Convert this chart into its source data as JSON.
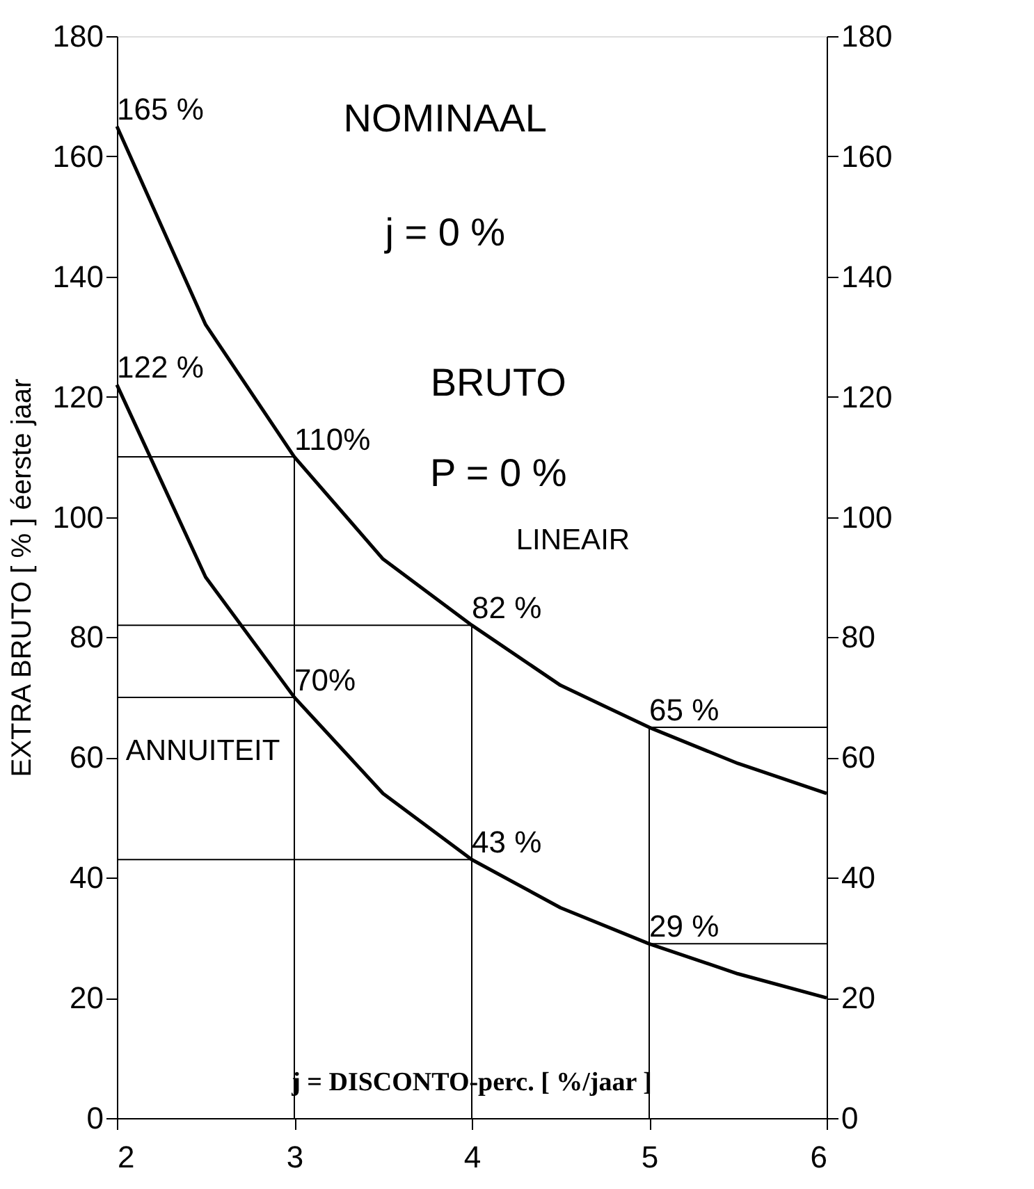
{
  "chart_data": {
    "type": "line",
    "x": [
      2,
      2.5,
      3,
      3.5,
      4,
      4.5,
      5,
      5.5,
      6
    ],
    "series": [
      {
        "name": "LINEAIR",
        "color": "#000000",
        "values": [
          165,
          132,
          110,
          93,
          82,
          72,
          65,
          59,
          54
        ]
      },
      {
        "name": "ANNUITEIT",
        "color": "#000000",
        "values": [
          122,
          90,
          70,
          54,
          43,
          35,
          29,
          24,
          20
        ]
      }
    ],
    "xlabel": "j = DISCONTO-perc. [ %/jaar ]",
    "ylabel": "EXTRA BRUTO [ % ]    éerste jaar",
    "xlim": [
      2,
      6
    ],
    "xticks": [
      2,
      3,
      4,
      5,
      6
    ],
    "ylim": [
      0,
      180
    ],
    "yticks": [
      0,
      20,
      40,
      60,
      80,
      100,
      120,
      140,
      160,
      180
    ],
    "y2lim": [
      0,
      180
    ],
    "y2ticks": [
      0,
      20,
      40,
      60,
      80,
      100,
      120,
      140,
      160,
      180
    ],
    "grid": false,
    "legend": false,
    "marker": "none",
    "line_style": "solid",
    "annotations": [
      "NOMINAAL",
      "j = 0 %",
      "BRUTO",
      "P = 0 %",
      {
        "text": "165 %",
        "x": 2,
        "y": 165
      },
      {
        "text": "122 %",
        "x": 2,
        "y": 122
      },
      {
        "text": "110%",
        "x": 3,
        "y": 110
      },
      {
        "text": "70%",
        "x": 3,
        "y": 70
      },
      {
        "text": "82 %",
        "x": 4,
        "y": 82
      },
      {
        "text": "43 %",
        "x": 4,
        "y": 43
      },
      {
        "text": "65 %",
        "x": 5,
        "y": 65
      },
      {
        "text": "29 %",
        "x": 5,
        "y": 29
      }
    ]
  }
}
